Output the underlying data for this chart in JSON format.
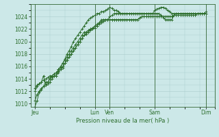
{
  "bg_color": "#cce8e8",
  "grid_color": "#aacccc",
  "line_color": "#2d6e2d",
  "xlabel_text": "Pression niveau de la mer( hPa )",
  "ylim": [
    1009.5,
    1026.0
  ],
  "yticks": [
    1010,
    1012,
    1014,
    1016,
    1018,
    1020,
    1022,
    1024
  ],
  "xtick_labels": [
    "Jeu",
    "Lun",
    "Ven",
    "Sam",
    "Dim"
  ],
  "xtick_positions": [
    0,
    28,
    35,
    56,
    80
  ],
  "vline_positions": [
    0,
    28,
    35,
    56,
    80
  ],
  "xlim": [
    -2,
    84
  ],
  "series": [
    [
      1009.5,
      1010.5,
      1011.8,
      1012.2,
      1012.8,
      1013.5,
      1013.5,
      1014.0,
      1014.3,
      1014.5,
      1014.5,
      1015.5,
      1015.8,
      1016.5,
      1017.2,
      1018.0,
      1018.5,
      1019.2,
      1020.0,
      1020.5,
      1021.0,
      1021.5,
      1022.0,
      1022.5,
      1023.0,
      1023.5,
      1023.8,
      1024.0,
      1024.2,
      1024.5,
      1024.5,
      1024.8,
      1024.8,
      1025.0,
      1025.2,
      1025.5,
      1025.3,
      1025.0,
      1025.0,
      1024.8,
      1024.5,
      1024.5,
      1024.5,
      1024.5,
      1024.5,
      1024.5,
      1024.5,
      1024.5,
      1024.5,
      1024.5,
      1024.5,
      1024.5,
      1024.5,
      1024.5,
      1024.5,
      1024.5,
      1025.0,
      1025.2,
      1025.3,
      1025.5,
      1025.5,
      1025.3,
      1025.0,
      1024.8,
      1024.5,
      1024.5,
      1024.5,
      1024.5,
      1024.5,
      1024.5,
      1024.5,
      1024.5,
      1024.5,
      1024.5,
      1024.5,
      1024.5,
      1024.5,
      1024.5,
      1024.5,
      1024.5,
      1024.8
    ],
    [
      1012.0,
      1012.8,
      1013.2,
      1013.5,
      1013.8,
      1014.0,
      1014.2,
      1014.5,
      1014.5,
      1014.8,
      1015.0,
      1015.2,
      1015.5,
      1015.8,
      1016.5,
      1017.0,
      1017.5,
      1018.0,
      1018.5,
      1019.0,
      1019.5,
      1020.0,
      1020.5,
      1021.0,
      1021.2,
      1021.5,
      1021.8,
      1022.0,
      1022.2,
      1022.5,
      1022.8,
      1023.0,
      1023.2,
      1023.5,
      1023.5,
      1023.5,
      1023.5,
      1023.5,
      1023.5,
      1023.5,
      1023.5,
      1023.5,
      1023.5,
      1023.5,
      1023.5,
      1023.5,
      1023.5,
      1023.5,
      1023.5,
      1023.8,
      1024.0,
      1024.0,
      1024.0,
      1024.0,
      1024.0,
      1024.0,
      1024.0,
      1024.0,
      1024.0,
      1024.0,
      1024.0,
      1024.0,
      1024.0,
      1024.0,
      1024.0,
      1024.2,
      1024.2,
      1024.2,
      1024.2,
      1024.2,
      1024.2,
      1024.2,
      1024.2,
      1024.2,
      1024.2,
      1024.2,
      1024.5,
      1024.5,
      1024.5,
      1024.5,
      1024.5
    ],
    [
      1012.5,
      1013.0,
      1013.2,
      1013.5,
      1014.5,
      1013.0,
      1013.2,
      1014.2,
      1014.5,
      1014.8,
      1015.0,
      1015.5,
      1016.0,
      1016.5,
      1017.0,
      1017.5,
      1018.0,
      1018.5,
      1019.0,
      1019.5,
      1020.0,
      1020.5,
      1021.0,
      1021.5,
      1021.5,
      1021.5,
      1022.0,
      1022.0,
      1022.5,
      1022.5,
      1023.0,
      1023.5,
      1023.5,
      1023.5,
      1023.5,
      1024.0,
      1024.2,
      1024.5,
      1024.5,
      1024.5,
      1024.5,
      1024.5,
      1024.5,
      1024.5,
      1024.5,
      1024.5,
      1024.5,
      1024.5,
      1024.5,
      1024.5,
      1024.5,
      1024.5,
      1024.5,
      1024.5,
      1024.5,
      1024.5,
      1024.5,
      1024.5,
      1024.5,
      1024.2,
      1023.8,
      1023.5,
      1023.5,
      1023.5,
      1023.5,
      1024.2,
      1024.5,
      1024.5,
      1024.5,
      1024.5,
      1024.5,
      1024.5,
      1024.5,
      1024.5,
      1024.5,
      1024.5,
      1024.5,
      1024.5,
      1024.5,
      1024.5,
      1024.5
    ],
    [
      1010.5,
      1011.5,
      1012.0,
      1012.5,
      1012.8,
      1013.0,
      1013.2,
      1013.5,
      1014.0,
      1014.5,
      1014.5,
      1015.0,
      1015.5,
      1016.0,
      1016.5,
      1017.0,
      1017.5,
      1018.0,
      1018.5,
      1019.0,
      1019.5,
      1020.0,
      1020.5,
      1021.0,
      1021.5,
      1021.8,
      1022.0,
      1022.2,
      1022.5,
      1022.8,
      1023.0,
      1023.2,
      1023.5,
      1023.5,
      1023.5,
      1023.5,
      1023.5,
      1023.5,
      1023.5,
      1023.5,
      1023.5,
      1023.5,
      1023.5,
      1023.5,
      1023.5,
      1023.5,
      1023.5,
      1023.5,
      1023.5,
      1023.8,
      1024.0,
      1024.0,
      1024.0,
      1024.0,
      1024.0,
      1024.0,
      1024.0,
      1024.0,
      1024.0,
      1024.0,
      1024.0,
      1024.0,
      1024.0,
      1024.0,
      1024.0,
      1024.2,
      1024.2,
      1024.2,
      1024.2,
      1024.2,
      1024.2,
      1024.2,
      1024.2,
      1024.2,
      1024.2,
      1024.2,
      1024.5,
      1024.5,
      1024.5,
      1024.5,
      1024.5
    ]
  ]
}
